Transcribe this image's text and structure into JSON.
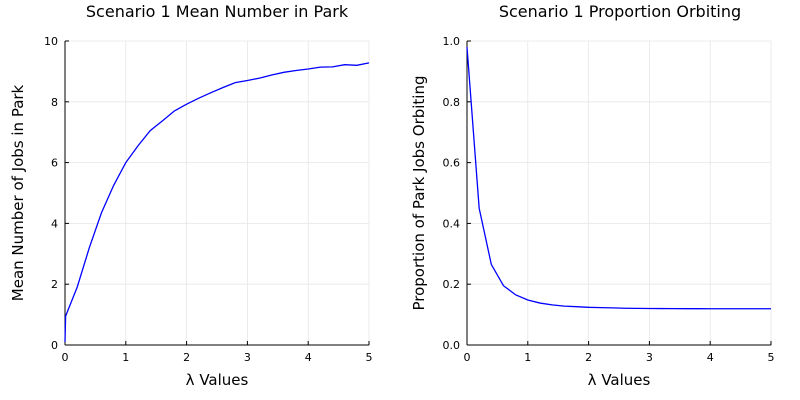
{
  "chart_data": [
    {
      "type": "line",
      "title": "Scenario 1 Mean Number in Park",
      "xlabel": "λ Values",
      "ylabel": "Mean Number of Jobs in Park",
      "xlim": [
        0,
        5
      ],
      "ylim": [
        0,
        10
      ],
      "xticks": [
        0,
        1,
        2,
        3,
        4,
        5
      ],
      "yticks": [
        0,
        2,
        4,
        6,
        8,
        10
      ],
      "grid": true,
      "legend": false,
      "series": [
        {
          "color": "#0000ff",
          "x": [
            0,
            0.01,
            0.2,
            0.4,
            0.6,
            0.8,
            1.0,
            1.2,
            1.4,
            1.6,
            1.8,
            2.0,
            2.2,
            2.4,
            2.6,
            2.8,
            3.0,
            3.2,
            3.4,
            3.6,
            3.8,
            4.0,
            4.2,
            4.4,
            4.6,
            4.8,
            5.0
          ],
          "y": [
            0.1,
            0.95,
            1.9,
            3.2,
            4.35,
            5.25,
            6.0,
            6.55,
            7.05,
            7.37,
            7.7,
            7.92,
            8.12,
            8.3,
            8.47,
            8.63,
            8.7,
            8.78,
            8.88,
            8.97,
            9.03,
            9.08,
            9.14,
            9.15,
            9.22,
            9.2,
            9.28
          ]
        }
      ]
    },
    {
      "type": "line",
      "title": "Scenario 1 Proportion Orbiting",
      "xlabel": "λ Values",
      "ylabel": "Proportion of Park Jobs Orbiting",
      "xlim": [
        0,
        5
      ],
      "ylim": [
        0,
        1
      ],
      "xticks": [
        0,
        1,
        2,
        3,
        4,
        5
      ],
      "yticks": [
        0.0,
        0.2,
        0.4,
        0.6,
        0.8,
        1.0
      ],
      "yticklabels": [
        "0.0",
        "0.2",
        "0.4",
        "0.6",
        "0.8",
        "1.0"
      ],
      "grid": true,
      "legend": false,
      "series": [
        {
          "color": "#0000ff",
          "x": [
            0,
            0.2,
            0.4,
            0.6,
            0.8,
            1.0,
            1.2,
            1.4,
            1.6,
            1.8,
            2.0,
            2.2,
            2.4,
            2.6,
            2.8,
            3.0,
            3.2,
            3.4,
            3.6,
            3.8,
            4.0,
            4.2,
            4.4,
            4.6,
            4.8,
            5.0
          ],
          "y": [
            0.98,
            0.45,
            0.265,
            0.195,
            0.165,
            0.148,
            0.138,
            0.132,
            0.128,
            0.126,
            0.124,
            0.123,
            0.122,
            0.121,
            0.1205,
            0.12,
            0.1198,
            0.1196,
            0.1195,
            0.1194,
            0.1193,
            0.1193,
            0.1193,
            0.1193,
            0.1192,
            0.1192
          ]
        }
      ]
    }
  ]
}
